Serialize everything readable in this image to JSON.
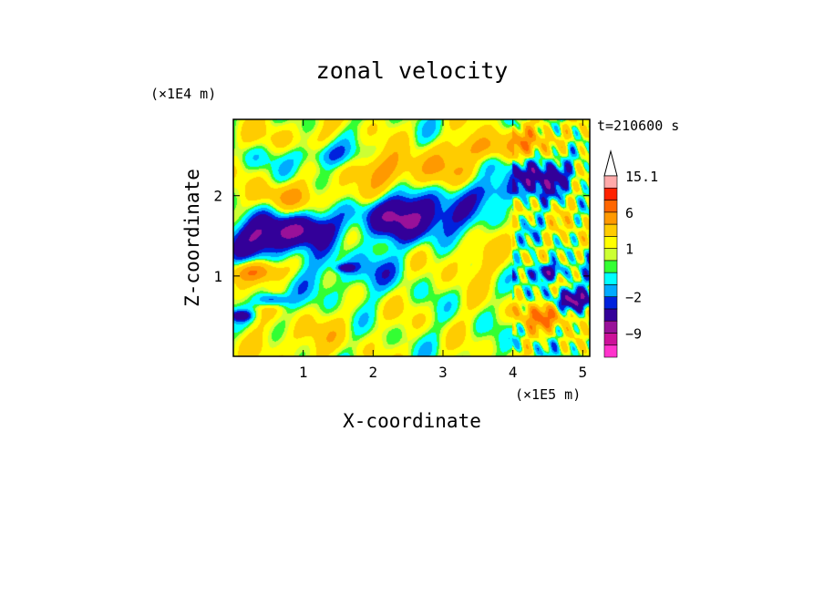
{
  "chart_data": {
    "type": "heatmap",
    "title": "zonal velocity",
    "xlabel": "X-coordinate",
    "ylabel": "Z-coordinate",
    "x_unit": "(×1E5 m)",
    "y_unit": "(×1E4 m)",
    "time_label": "t=210600 s",
    "xlim": [
      0,
      5.1
    ],
    "ylim": [
      0,
      2.95
    ],
    "x_ticks": [
      "1",
      "2",
      "3",
      "4",
      "5"
    ],
    "x_tick_values": [
      1,
      2,
      3,
      4,
      5
    ],
    "y_ticks": [
      "1",
      "2"
    ],
    "y_tick_values": [
      1,
      2
    ],
    "colorbar": {
      "tick_labels": [
        "15.1",
        "6",
        "1",
        "-2",
        "-9"
      ],
      "levels": [
        {
          "lo": -15.1,
          "hi": -12,
          "color": "#ff33cc"
        },
        {
          "lo": -12,
          "hi": -9,
          "color": "#cc1199"
        },
        {
          "lo": -9,
          "hi": -6,
          "color": "#991199"
        },
        {
          "lo": -6,
          "hi": -3,
          "color": "#330099"
        },
        {
          "lo": -3,
          "hi": -2,
          "color": "#0022dd"
        },
        {
          "lo": -2,
          "hi": -1,
          "color": "#00aaff"
        },
        {
          "lo": -1,
          "hi": 0,
          "color": "#00ffff"
        },
        {
          "lo": 0,
          "hi": 0.5,
          "color": "#33ff33"
        },
        {
          "lo": 0.5,
          "hi": 1,
          "color": "#ccff33"
        },
        {
          "lo": 1,
          "hi": 2,
          "color": "#ffff00"
        },
        {
          "lo": 2,
          "hi": 4,
          "color": "#ffcc00"
        },
        {
          "lo": 4,
          "hi": 6,
          "color": "#ff9900"
        },
        {
          "lo": 6,
          "hi": 9,
          "color": "#ff6600"
        },
        {
          "lo": 9,
          "hi": 12,
          "color": "#ff2200"
        },
        {
          "lo": 12,
          "hi": 15.1,
          "color": "#ffaaaa"
        }
      ],
      "extend_max_color": "#ffffff"
    },
    "field_blobs": [
      {
        "x": 2.55,
        "z": 1.75,
        "r": 0.55,
        "v": -7
      },
      {
        "x": 0.35,
        "z": 1.45,
        "r": 0.45,
        "v": -6
      },
      {
        "x": 1.0,
        "z": 1.6,
        "r": 0.35,
        "v": -5
      },
      {
        "x": 1.3,
        "z": 2.5,
        "r": 0.3,
        "v": -4
      },
      {
        "x": 4.4,
        "z": 2.25,
        "r": 0.4,
        "v": -5
      },
      {
        "x": 3.8,
        "z": 2.05,
        "r": 0.3,
        "v": -3
      },
      {
        "x": 4.5,
        "z": 1.05,
        "r": 0.2,
        "v": -6
      },
      {
        "x": 4.9,
        "z": 0.7,
        "r": 0.25,
        "v": -6
      },
      {
        "x": 0.55,
        "z": 0.7,
        "r": 0.15,
        "v": -5
      },
      {
        "x": 0.1,
        "z": 0.5,
        "r": 0.12,
        "v": -4
      },
      {
        "x": 1.6,
        "z": 1.1,
        "r": 0.1,
        "v": -4
      },
      {
        "x": 1.5,
        "z": 1.0,
        "r": 0.55,
        "v": -1.6
      },
      {
        "x": 2.3,
        "z": 1.1,
        "r": 0.4,
        "v": -1.3
      },
      {
        "x": 0.3,
        "z": 2.5,
        "r": 0.3,
        "v": -1.2
      },
      {
        "x": 2.7,
        "z": 0.5,
        "r": 0.55,
        "v": 0.2
      },
      {
        "x": 1.8,
        "z": 0.6,
        "r": 0.5,
        "v": 0.3
      },
      {
        "x": 4.0,
        "z": 1.6,
        "r": 0.35,
        "v": 0.3
      },
      {
        "x": 0.9,
        "z": 2.7,
        "r": 0.5,
        "v": 1.5
      },
      {
        "x": 2.8,
        "z": 2.3,
        "r": 0.45,
        "v": 2.8
      },
      {
        "x": 2.1,
        "z": 2.35,
        "r": 0.4,
        "v": 2.5
      },
      {
        "x": 0.3,
        "z": 1.05,
        "r": 0.25,
        "v": 6.5
      },
      {
        "x": 0.7,
        "z": 2.0,
        "r": 0.3,
        "v": 3.2
      },
      {
        "x": 3.3,
        "z": 1.2,
        "r": 0.5,
        "v": 1.8
      },
      {
        "x": 1.0,
        "z": 0.2,
        "r": 0.45,
        "v": 1.8
      },
      {
        "x": 4.5,
        "z": 0.5,
        "r": 0.3,
        "v": 4.5
      },
      {
        "x": 4.4,
        "z": 2.7,
        "r": 0.35,
        "v": 3.0
      },
      {
        "x": 3.6,
        "z": 2.6,
        "r": 0.3,
        "v": 4.0
      },
      {
        "x": 1.7,
        "z": 2.0,
        "r": 0.3,
        "v": 2.5
      }
    ]
  }
}
